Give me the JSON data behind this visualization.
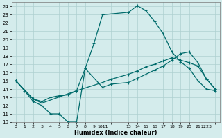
{
  "xlabel": "Humidex (Indice chaleur)",
  "background_color": "#d4ecec",
  "grid_color": "#aed0d0",
  "line_color": "#006b6b",
  "xlim": [
    -0.5,
    23.5
  ],
  "ylim": [
    10,
    24.5
  ],
  "xtick_values": [
    0,
    1,
    2,
    3,
    4,
    5,
    6,
    7,
    8,
    9,
    10,
    11,
    13,
    14,
    15,
    16,
    17,
    18,
    19,
    20,
    21,
    22,
    23
  ],
  "xtick_labels": [
    "0",
    "1",
    "2",
    "3",
    "4",
    "5",
    "6",
    "7",
    "8",
    "9",
    "1011",
    "",
    "13",
    "14",
    "15",
    "16",
    "17",
    "18",
    "19",
    "20",
    "21",
    "2223",
    ""
  ],
  "ytick_values": [
    10,
    11,
    12,
    13,
    14,
    15,
    16,
    17,
    18,
    19,
    20,
    21,
    22,
    23,
    24
  ],
  "series": [
    {
      "x": [
        0,
        1,
        2,
        3,
        4,
        5,
        6,
        7,
        8,
        9,
        10,
        13,
        14,
        15,
        16,
        17,
        18,
        19,
        20,
        21,
        22,
        23
      ],
      "y": [
        15,
        13.8,
        12.5,
        12,
        11,
        11,
        10,
        10,
        16.5,
        19.5,
        23,
        23.3,
        24.1,
        23.5,
        22.2,
        20.7,
        18.5,
        17.3,
        16.5,
        15.0,
        14.0,
        13.8
      ]
    },
    {
      "x": [
        0,
        2,
        3,
        4,
        5,
        6,
        7,
        10,
        11,
        13,
        14,
        15,
        16,
        17,
        18,
        19,
        20,
        21,
        22,
        23
      ],
      "y": [
        15,
        12.8,
        12.5,
        13.0,
        13.2,
        13.3,
        13.8,
        14.8,
        15.2,
        15.8,
        16.2,
        16.7,
        17.0,
        17.4,
        17.8,
        17.5,
        17.2,
        16.8,
        15.2,
        14.0
      ]
    },
    {
      "x": [
        0,
        2,
        3,
        7,
        8,
        10,
        11,
        13,
        14,
        15,
        16,
        17,
        18,
        19,
        20,
        21,
        22,
        23
      ],
      "y": [
        15,
        12.8,
        12.3,
        13.8,
        16.5,
        14.2,
        14.6,
        14.8,
        15.3,
        15.8,
        16.3,
        16.8,
        17.5,
        18.3,
        18.5,
        17.2,
        15.2,
        14.0
      ]
    }
  ]
}
